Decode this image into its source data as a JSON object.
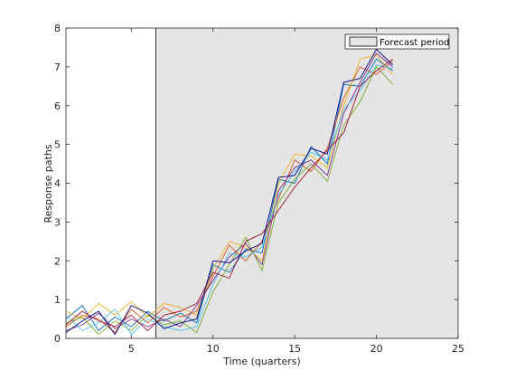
{
  "chart_data": {
    "type": "line",
    "title": "",
    "xlabel": "Time (quarters)",
    "ylabel": "Response paths",
    "xlim": [
      1,
      25
    ],
    "ylim": [
      0,
      8
    ],
    "xticks": [
      5,
      10,
      15,
      20,
      25
    ],
    "yticks": [
      0,
      1,
      2,
      3,
      4,
      5,
      6,
      7,
      8
    ],
    "grid": false,
    "legend": {
      "position": "top-right",
      "entries": [
        {
          "label": "Forecast period",
          "color": "#e5e5e5"
        }
      ]
    },
    "forecast_period": {
      "x_start": 6.5,
      "x_end": 25,
      "fill": "#e5e5e5",
      "label": "Forecast period"
    },
    "x": [
      1,
      2,
      3,
      4,
      5,
      6,
      7,
      8,
      9,
      10,
      11,
      12,
      13,
      14,
      15,
      16,
      17,
      18,
      19,
      20,
      21
    ],
    "series": [
      {
        "color": "#0072bd",
        "values": [
          0.5,
          0.85,
          0.2,
          0.55,
          0.3,
          0.7,
          0.45,
          0.65,
          0.4,
          1.9,
          1.7,
          2.3,
          2.2,
          4.1,
          4.0,
          4.95,
          4.5,
          6.55,
          6.5,
          7.2,
          6.9
        ]
      },
      {
        "color": "#d95319",
        "values": [
          0.3,
          0.6,
          0.5,
          0.15,
          0.75,
          0.4,
          0.8,
          0.55,
          0.7,
          1.6,
          2.4,
          2.0,
          2.5,
          3.6,
          4.6,
          4.3,
          4.9,
          6.2,
          7.0,
          6.8,
          7.15
        ]
      },
      {
        "color": "#edb120",
        "values": [
          0.7,
          0.5,
          0.9,
          0.6,
          0.95,
          0.55,
          0.9,
          0.8,
          0.6,
          1.8,
          2.5,
          2.35,
          2.0,
          4.0,
          4.75,
          4.7,
          4.4,
          6.0,
          7.2,
          7.3,
          6.8
        ]
      },
      {
        "color": "#7e2f8e",
        "values": [
          0.2,
          0.35,
          0.65,
          0.25,
          0.5,
          0.3,
          0.5,
          0.3,
          0.85,
          1.5,
          2.1,
          2.45,
          1.9,
          3.8,
          4.4,
          4.6,
          4.2,
          5.8,
          6.6,
          7.35,
          7.0
        ]
      },
      {
        "color": "#77ac30",
        "values": [
          0.4,
          0.55,
          0.1,
          0.45,
          0.2,
          0.6,
          0.35,
          0.45,
          0.15,
          1.2,
          1.9,
          2.6,
          1.75,
          3.5,
          4.1,
          4.5,
          4.05,
          5.5,
          6.1,
          7.0,
          6.55
        ]
      },
      {
        "color": "#4dbeee",
        "values": [
          0.6,
          0.2,
          0.4,
          0.75,
          0.1,
          0.5,
          0.3,
          0.2,
          0.3,
          1.4,
          2.2,
          2.1,
          2.35,
          3.7,
          4.3,
          4.8,
          4.6,
          5.9,
          6.4,
          7.05,
          6.95
        ]
      },
      {
        "color": "#a2142f",
        "values": [
          0.35,
          0.7,
          0.45,
          0.3,
          0.6,
          0.2,
          0.6,
          0.7,
          0.9,
          1.7,
          1.55,
          2.5,
          2.7,
          3.3,
          3.9,
          4.4,
          4.85,
          5.3,
          6.5,
          6.9,
          7.2
        ]
      },
      {
        "color": "#00008b",
        "values": [
          0.15,
          0.45,
          0.7,
          0.1,
          0.85,
          0.65,
          0.25,
          0.4,
          0.5,
          2.0,
          1.95,
          2.25,
          2.45,
          4.15,
          4.2,
          4.9,
          4.75,
          6.6,
          6.7,
          7.45,
          7.05
        ]
      }
    ]
  }
}
